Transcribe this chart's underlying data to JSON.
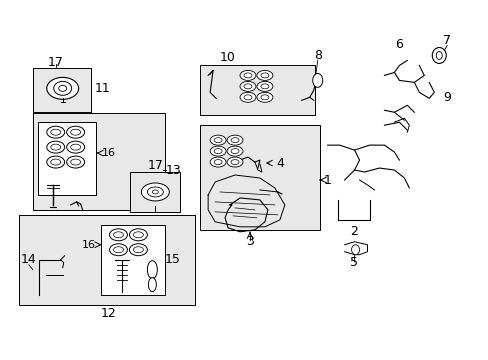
{
  "bg_color": "#ffffff",
  "fig_width": 4.89,
  "fig_height": 3.6,
  "dpi": 100,
  "gray_fill": "#e8e8e8",
  "white_fill": "#ffffff",
  "lc": "#000000"
}
